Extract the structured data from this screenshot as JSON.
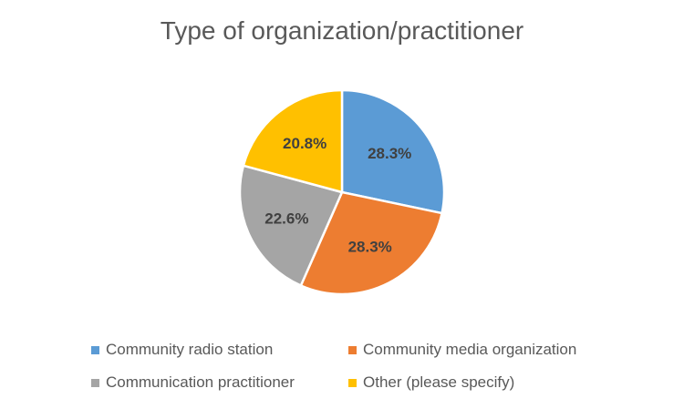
{
  "chart_data": {
    "type": "pie",
    "title": "Type of organization/practitioner",
    "categories": [
      "Community radio station",
      "Community media organization",
      "Communication practitioner",
      "Other (please specify)"
    ],
    "values": [
      28.3,
      28.3,
      22.6,
      20.8
    ],
    "value_labels": [
      "28.3%",
      "28.3%",
      "22.6%",
      "20.8%"
    ],
    "colors": [
      "#5B9BD5",
      "#ED7D31",
      "#A5A5A5",
      "#FFC000"
    ],
    "legend_position": "bottom"
  }
}
